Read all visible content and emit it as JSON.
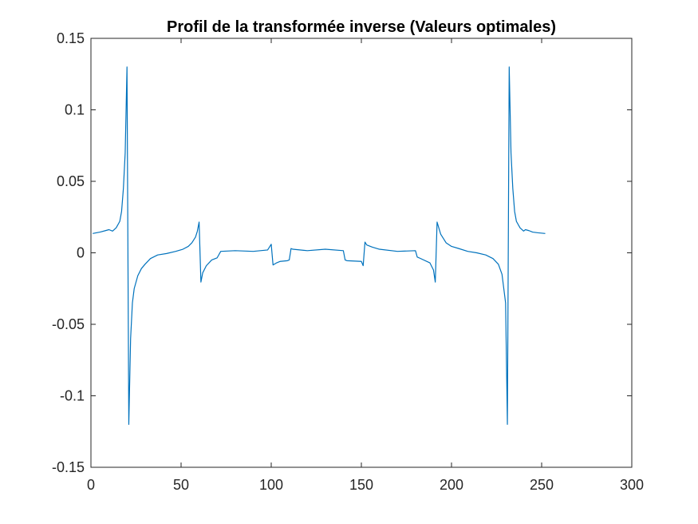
{
  "chart_data": {
    "type": "line",
    "title": "Profil de la transformée inverse (Valeurs optimales)",
    "xlabel": "",
    "ylabel": "",
    "xlim": [
      0,
      300
    ],
    "ylim": [
      -0.15,
      0.15
    ],
    "xticks": [
      0,
      50,
      100,
      150,
      200,
      250,
      300
    ],
    "xtick_labels": [
      "0",
      "50",
      "100",
      "150",
      "200",
      "250",
      "300"
    ],
    "yticks": [
      -0.15,
      -0.1,
      -0.05,
      0,
      0.05,
      0.1,
      0.15
    ],
    "ytick_labels": [
      "-0.15",
      "-0.1",
      "-0.05",
      "0",
      "0.05",
      "0.1",
      "0.15"
    ],
    "grid": false,
    "series": [
      {
        "color": "#0072bd",
        "x": [
          1,
          5,
          8,
          10,
          12,
          14,
          16,
          17,
          18,
          19,
          20,
          21,
          22,
          23,
          24,
          26,
          28,
          30,
          33,
          37,
          42,
          47,
          51,
          54,
          56,
          58,
          59,
          60,
          61,
          62,
          64,
          67,
          70,
          72,
          80,
          90,
          98,
          100,
          101,
          103,
          105,
          109,
          110,
          111,
          112,
          120,
          130,
          140,
          141,
          142,
          150,
          151,
          152,
          153,
          156,
          160,
          170,
          180,
          181,
          182,
          188,
          190,
          191,
          192,
          194,
          197,
          200,
          204,
          209,
          214,
          219,
          223,
          226,
          228,
          230,
          231,
          232,
          233,
          234,
          235,
          236,
          238,
          240,
          241,
          243,
          245,
          248,
          252
        ],
        "y": [
          0.0135,
          0.0145,
          0.0155,
          0.0162,
          0.0152,
          0.0175,
          0.022,
          0.029,
          0.045,
          0.07,
          0.13,
          -0.12,
          -0.06,
          -0.035,
          -0.025,
          -0.016,
          -0.011,
          -0.008,
          -0.004,
          -0.0015,
          -0.0005,
          0.001,
          0.0025,
          0.0045,
          0.007,
          0.011,
          0.015,
          0.0215,
          -0.0205,
          -0.014,
          -0.009,
          -0.005,
          -0.0035,
          0.001,
          0.0015,
          0.001,
          0.002,
          0.006,
          -0.0085,
          -0.007,
          -0.006,
          -0.0055,
          -0.005,
          0.003,
          0.0025,
          0.0015,
          0.0025,
          0.0015,
          -0.005,
          -0.0055,
          -0.006,
          -0.009,
          0.0075,
          0.0055,
          0.004,
          0.0025,
          0.001,
          0.0015,
          -0.003,
          -0.0035,
          -0.007,
          -0.012,
          -0.0205,
          0.0215,
          0.013,
          0.007,
          0.0045,
          0.003,
          0.001,
          0.0,
          -0.0015,
          -0.004,
          -0.008,
          -0.015,
          -0.035,
          -0.12,
          0.13,
          0.07,
          0.045,
          0.029,
          0.022,
          0.0175,
          0.0152,
          0.0162,
          0.0155,
          0.0145,
          0.014,
          0.0135
        ]
      }
    ]
  }
}
